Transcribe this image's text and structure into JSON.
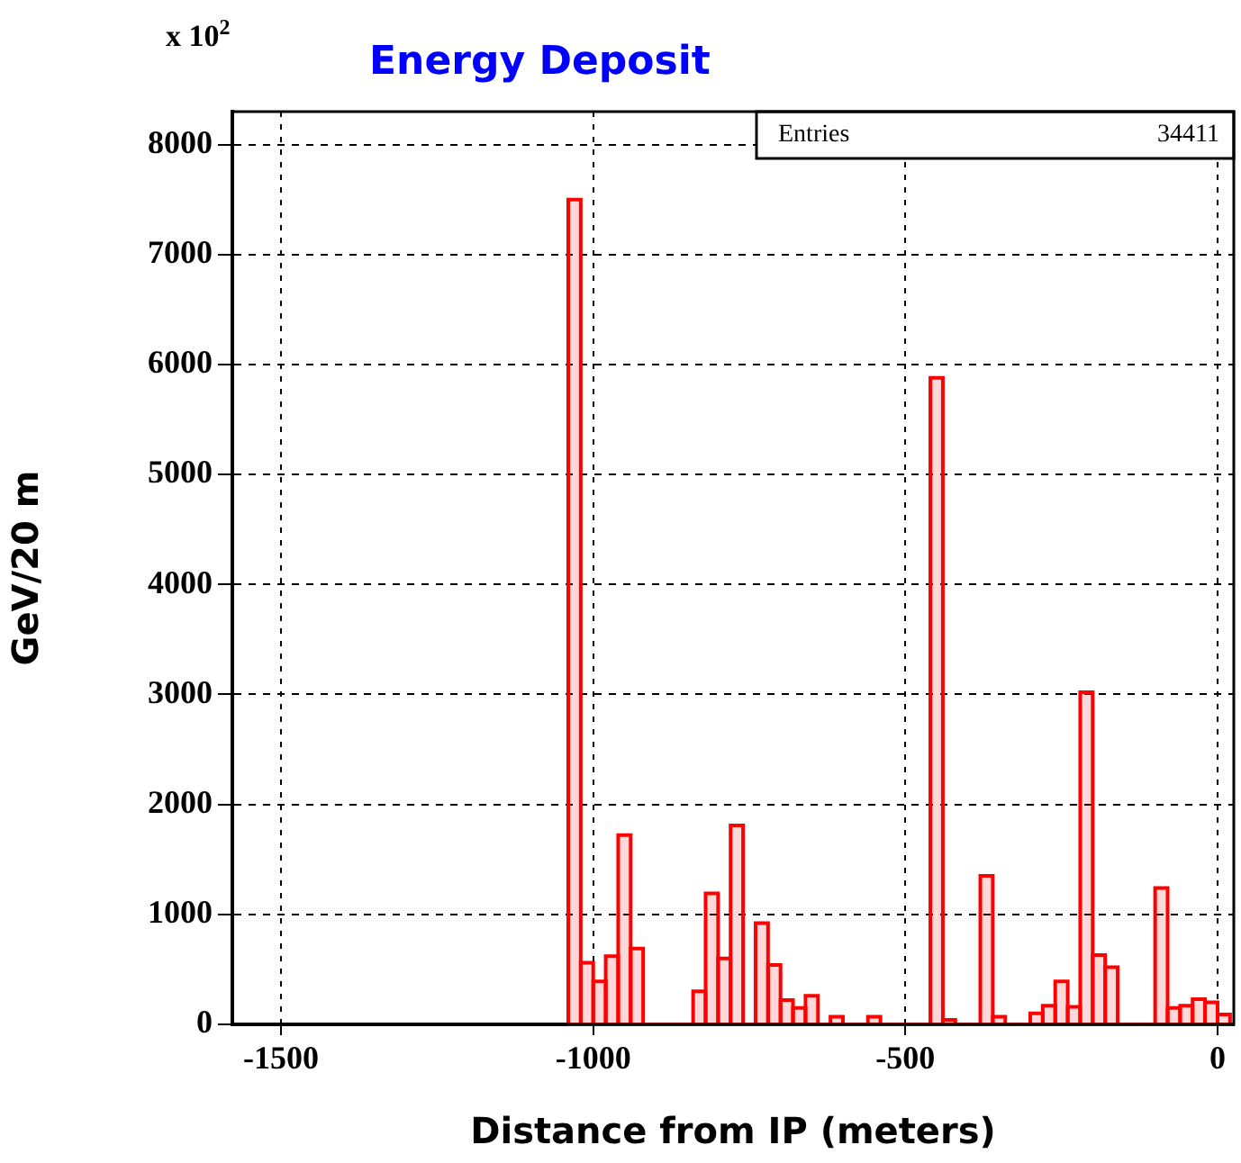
{
  "chart_data": {
    "type": "histogram",
    "title": "Energy Deposit",
    "xlabel": "Distance from IP (meters)",
    "ylabel": "GeV/20 m",
    "annotations": [
      "x 10$^{2}$",
      "Entries",
      "34411"
    ],
    "bins": [
      -1040,
      -1020,
      -1000,
      -980,
      -960,
      -940,
      -920,
      -900,
      -880,
      -860,
      -840,
      -820,
      -800,
      -780,
      -760,
      -740,
      -720,
      -700,
      -680,
      -660,
      -640,
      -620,
      -600,
      -580,
      -560,
      -540,
      -520,
      -500,
      -480,
      -460,
      -440,
      -420,
      -400,
      -380,
      -360,
      -340,
      -320,
      -300,
      -280,
      -260,
      -240,
      -220,
      -200,
      -180,
      -160,
      -140,
      -120,
      -100,
      -80,
      -60,
      -40,
      -20,
      0,
      20
    ],
    "values": [
      7500,
      560,
      390,
      620,
      1720,
      690,
      0,
      0,
      0,
      0,
      300,
      1190,
      600,
      1810,
      0,
      920,
      540,
      220,
      150,
      260,
      0,
      70,
      0,
      0,
      70,
      0,
      0,
      0,
      0,
      5880,
      40,
      0,
      0,
      1350,
      70,
      0,
      0,
      100,
      170,
      390,
      160,
      3020,
      630,
      520,
      0,
      0,
      0,
      1240,
      150,
      170,
      230,
      200,
      90
    ],
    "color": "#ff0000",
    "xlim": [
      -1578,
      26
    ],
    "xticks": [
      -1500,
      -1000,
      -500,
      0
    ],
    "ylim": [
      0,
      8300
    ],
    "yticks": [
      0,
      1000,
      2000,
      3000,
      4000,
      5000,
      6000,
      7000,
      8000
    ],
    "grid": true
  }
}
